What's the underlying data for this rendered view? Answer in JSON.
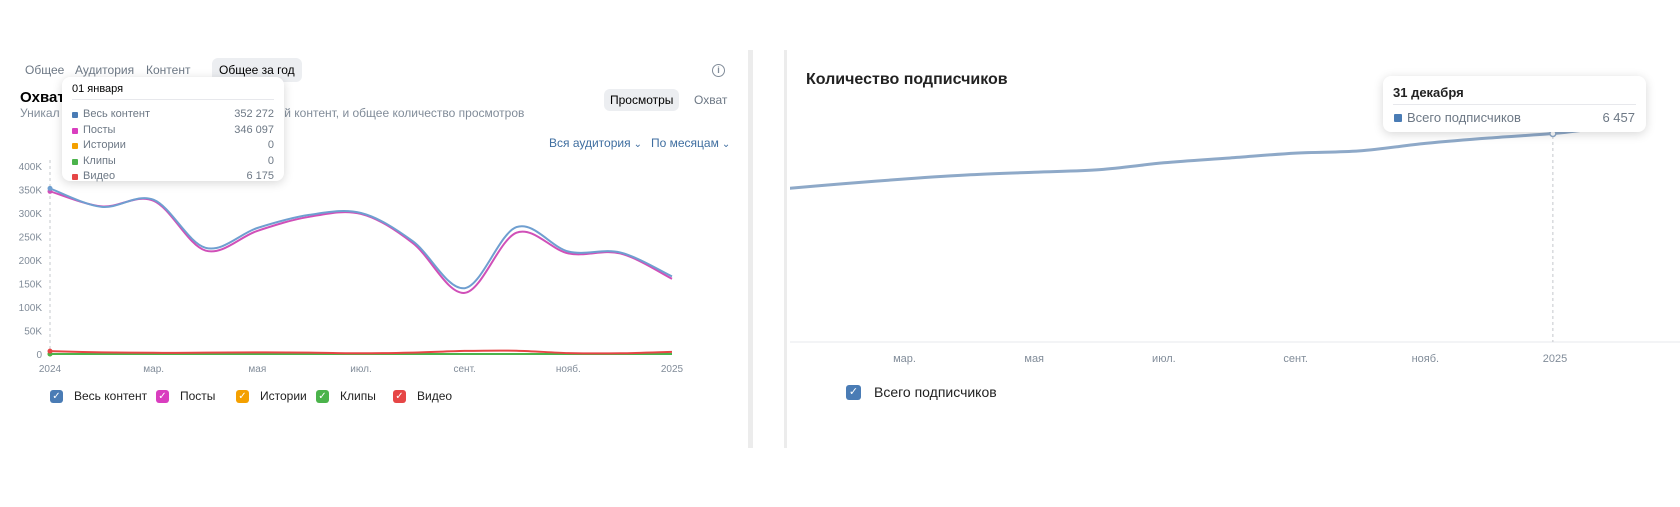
{
  "left_panel": {
    "tabs": [
      {
        "label": "Общее"
      },
      {
        "label": "Аудитория"
      },
      {
        "label": "Контент"
      },
      {
        "label": "Общее за год"
      }
    ],
    "title": "Охват",
    "subtitle_start": "Уникал",
    "subtitle_end": "ный контент, и общее количество просмотров",
    "metric_toggle": {
      "views": "Просмотры",
      "reach": "Охват"
    },
    "audience_dropdown": "Вся аудитория",
    "period_dropdown": "По месяцам",
    "tooltip": {
      "date": "01 января",
      "rows": [
        {
          "label": "Весь контент",
          "value": "352 272",
          "color": "#4a7cb5"
        },
        {
          "label": "Посты",
          "value": "346 097",
          "color": "#d93ebf"
        },
        {
          "label": "Истории",
          "value": "0",
          "color": "#f4a000"
        },
        {
          "label": "Клипы",
          "value": "0",
          "color": "#4bb34b"
        },
        {
          "label": "Видео",
          "value": "6 175",
          "color": "#e64646"
        }
      ]
    }
  },
  "right_panel": {
    "title": "Количество подписчиков",
    "tooltip": {
      "date": "31 декабря",
      "label": "Всего подписчиков",
      "value": "6 457",
      "color": "#4a7cb5"
    }
  },
  "chart_data": [
    {
      "type": "line",
      "x": [
        "2024-01-01",
        "2024-02-01",
        "2024-03-01",
        "2024-04-01",
        "2024-05-01",
        "2024-06-01",
        "2024-07-01",
        "2024-08-01",
        "2024-09-01",
        "2024-10-01",
        "2024-11-01",
        "2024-12-01",
        "2025-01-01"
      ],
      "xticks": [
        "2024",
        "мар.",
        "мая",
        "июл.",
        "сент.",
        "нояб.",
        "2025"
      ],
      "yticks": [
        "0",
        "50K",
        "100K",
        "150K",
        "200K",
        "250K",
        "300K",
        "350K",
        "400K"
      ],
      "ylim": [
        0,
        400000
      ],
      "series": [
        {
          "name": "Весь контент",
          "color": "#6f9fd0",
          "values": [
            352272,
            313000,
            328000,
            226000,
            268000,
            296000,
            300000,
            240000,
            140000,
            270000,
            218000,
            216000,
            165000
          ]
        },
        {
          "name": "Посты",
          "color": "#d050b8",
          "values": [
            346097,
            314000,
            326000,
            220000,
            262000,
            292000,
            298000,
            236000,
            130000,
            258000,
            214000,
            214000,
            160000
          ]
        },
        {
          "name": "Истории",
          "color": "#f4a000",
          "values": [
            0,
            0,
            0,
            0,
            0,
            0,
            0,
            0,
            0,
            0,
            0,
            0,
            0
          ]
        },
        {
          "name": "Клипы",
          "color": "#4bb34b",
          "values": [
            0,
            0,
            0,
            0,
            0,
            0,
            0,
            0,
            0,
            0,
            0,
            0,
            0
          ]
        },
        {
          "name": "Видео",
          "color": "#e64646",
          "values": [
            6175,
            3500,
            2500,
            3000,
            3500,
            3000,
            1500,
            3000,
            6500,
            7000,
            2000,
            1500,
            4500
          ]
        }
      ],
      "legend": [
        {
          "name": "Весь контент",
          "color": "#4a7cb5"
        },
        {
          "name": "Посты",
          "color": "#d93ebf"
        },
        {
          "name": "Истории",
          "color": "#f4a000"
        },
        {
          "name": "Клипы",
          "color": "#4bb34b"
        },
        {
          "name": "Видео",
          "color": "#e64646"
        }
      ],
      "grid": false
    },
    {
      "type": "line",
      "x": [
        "2024-01-01",
        "2024-02-01",
        "2024-03-01",
        "2024-04-01",
        "2024-05-01",
        "2024-06-01",
        "2024-07-01",
        "2024-08-01",
        "2024-09-01",
        "2024-10-01",
        "2024-11-01",
        "2024-12-01",
        "2024-12-31",
        "2025-01-15"
      ],
      "xticks": [
        "2024",
        "мар.",
        "мая",
        "июл.",
        "сент.",
        "нояб.",
        "2025"
      ],
      "yticks": [
        "0",
        "1K",
        "2K",
        "3K",
        "4K",
        "5K",
        "6K",
        "7K"
      ],
      "ylim": [
        0,
        7000
      ],
      "series": [
        {
          "name": "Всего подписчиков",
          "color": "#8ea9c8",
          "values": [
            4730,
            4900,
            5050,
            5180,
            5260,
            5340,
            5550,
            5700,
            5850,
            5920,
            6150,
            6320,
            6457,
            6570
          ]
        }
      ],
      "legend": [
        {
          "name": "Всего подписчиков",
          "color": "#4a7cb5"
        }
      ],
      "grid": false
    }
  ]
}
